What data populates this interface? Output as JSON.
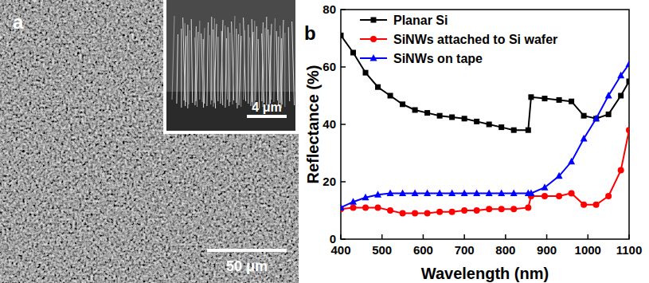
{
  "image_panel": {
    "label": "a",
    "scale_bar": "50 μm",
    "inset_scale_bar": "4 μm"
  },
  "chart_data": {
    "type": "line",
    "title": "b",
    "x_label": "Wavelength (nm)",
    "y_label": "Reflectance (%)",
    "x": [
      400,
      430,
      460,
      490,
      520,
      550,
      580,
      610,
      640,
      670,
      700,
      730,
      760,
      790,
      820,
      855,
      862,
      895,
      930,
      960,
      990,
      1020,
      1050,
      1080,
      1100
    ],
    "series": [
      {
        "name": "Planar Si",
        "color": "#000000",
        "marker": "square",
        "values": [
          71,
          65,
          58,
          53,
          50,
          47,
          45,
          44,
          43,
          42.5,
          42,
          41,
          40,
          39,
          38,
          38,
          49.5,
          49,
          48.5,
          48,
          43,
          42,
          43.5,
          50,
          55
        ]
      },
      {
        "name": "SiNWs attached to Si wafer",
        "color": "#ff0000",
        "marker": "circle",
        "values": [
          10.5,
          11,
          11,
          11,
          10,
          9,
          9,
          9,
          9.5,
          9.5,
          10,
          10,
          10.5,
          10.5,
          10.5,
          11,
          15,
          15,
          15,
          16,
          12,
          12,
          15,
          24,
          38
        ]
      },
      {
        "name": "SiNWs on tape",
        "color": "#0000ff",
        "marker": "triangle",
        "values": [
          11,
          13,
          14.5,
          15.5,
          16,
          16,
          16,
          16,
          16,
          16,
          16,
          16,
          16,
          16,
          16,
          16,
          16,
          18,
          22,
          27,
          35,
          42,
          50,
          57,
          61
        ]
      }
    ],
    "xlim": [
      400,
      1100
    ],
    "xticks": [
      400,
      500,
      600,
      700,
      800,
      900,
      1000,
      1100
    ],
    "ylim": [
      0,
      80
    ],
    "yticks": [
      0,
      20,
      40,
      60,
      80
    ],
    "legend": "top",
    "grid": false
  }
}
